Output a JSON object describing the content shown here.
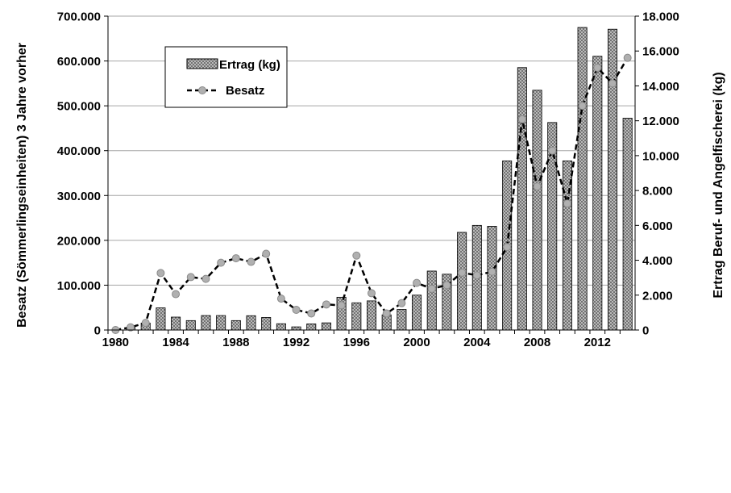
{
  "chart_data": {
    "type": "bar+line",
    "title": "",
    "x": [
      1980,
      1981,
      1982,
      1983,
      1984,
      1985,
      1986,
      1987,
      1988,
      1989,
      1990,
      1991,
      1992,
      1993,
      1994,
      1995,
      1996,
      1997,
      1998,
      1999,
      2000,
      2001,
      2002,
      2003,
      2004,
      2005,
      2006,
      2007,
      2008,
      2009,
      2010,
      2011,
      2012,
      2013,
      2014
    ],
    "x_tick_labels": [
      "1980",
      "1984",
      "1988",
      "1992",
      "1996",
      "2000",
      "2004",
      "2008",
      "2012"
    ],
    "series": [
      {
        "name": "Ertrag (kg)",
        "type": "bar",
        "axis": "right",
        "values": [
          0,
          150,
          400,
          1270,
          740,
          540,
          830,
          830,
          540,
          820,
          720,
          360,
          180,
          350,
          410,
          1880,
          1560,
          1670,
          870,
          1180,
          2000,
          3380,
          3200,
          5600,
          6000,
          5950,
          9700,
          15050,
          13750,
          11900,
          9700,
          17350,
          15700,
          17250,
          12150
        ]
      },
      {
        "name": "Besatz",
        "type": "line",
        "axis": "left",
        "values": [
          0,
          6000,
          16000,
          127000,
          80000,
          118000,
          114000,
          150000,
          160000,
          152000,
          170000,
          70000,
          45000,
          37000,
          57000,
          55000,
          166000,
          82000,
          37000,
          60000,
          105000,
          92000,
          100000,
          128000,
          122000,
          130000,
          185000,
          470000,
          320000,
          400000,
          282000,
          500000,
          585000,
          550000,
          607000
        ]
      }
    ],
    "y_left": {
      "label": "Besatz (Sömmerlingseinheiten) 3 Jahre vorher",
      "ylim": [
        0,
        700000
      ],
      "ticks": [
        "0",
        "100.000",
        "200.000",
        "300.000",
        "400.000",
        "500.000",
        "600.000",
        "700.000"
      ]
    },
    "y_right": {
      "label": "Ertrag Beruf- und Angelfischerei (kg)",
      "ylim": [
        0,
        18000
      ],
      "ticks": [
        "0",
        "2.000",
        "4.000",
        "6.000",
        "8.000",
        "10.000",
        "12.000",
        "14.000",
        "16.000",
        "18.000"
      ]
    },
    "grid": "horizontal",
    "legend": {
      "placement": "top-left",
      "entries": [
        "Ertrag (kg)",
        "Besatz"
      ]
    },
    "colors": {
      "bar_fill": "#c8c8c8",
      "bar_hatch": "#555555",
      "line": "#000000",
      "marker": "#b0b0b0",
      "grid": "#a6a6a6"
    }
  }
}
